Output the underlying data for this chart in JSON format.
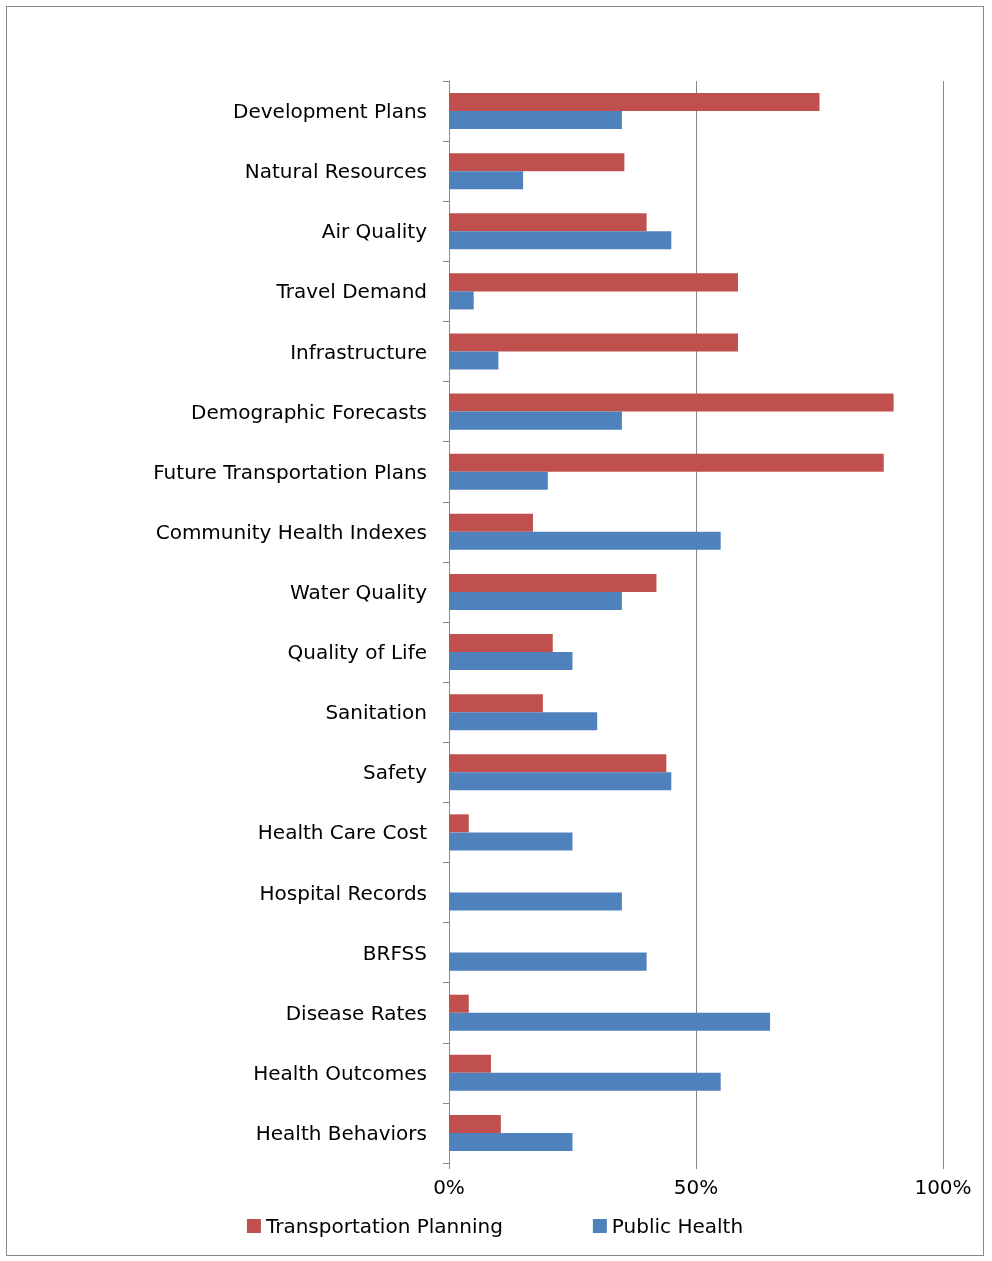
{
  "chart_data": {
    "type": "bar",
    "orientation": "horizontal",
    "categories": [
      "Development Plans",
      "Natural Resources",
      "Air Quality",
      "Travel Demand",
      "Infrastructure",
      "Demographic Forecasts",
      "Future Transportation Plans",
      "Community Health Indexes",
      "Water Quality",
      "Quality of Life",
      "Sanitation",
      "Safety",
      "Health Care Cost",
      "Hospital Records",
      "BRFSS",
      "Disease Rates",
      "Health Outcomes",
      "Health Behaviors"
    ],
    "series": [
      {
        "name": "Transportation Planning",
        "color": "#c0504d",
        "values": [
          75,
          35.5,
          40,
          58.5,
          58.5,
          90,
          88,
          17,
          42,
          21,
          19,
          44,
          4,
          0,
          0,
          4,
          8.5,
          10.5
        ]
      },
      {
        "name": "Public Health",
        "color": "#4f81bd",
        "values": [
          35,
          15,
          45,
          5,
          10,
          35,
          20,
          55,
          35,
          25,
          30,
          45,
          25,
          35,
          40,
          65,
          55,
          25
        ]
      }
    ],
    "xlim": [
      0,
      100
    ],
    "xticks": [
      {
        "value": 0,
        "label": "0%"
      },
      {
        "value": 50,
        "label": "50%"
      },
      {
        "value": 100,
        "label": "100%"
      }
    ],
    "grid": "x",
    "legend": "bottom"
  }
}
